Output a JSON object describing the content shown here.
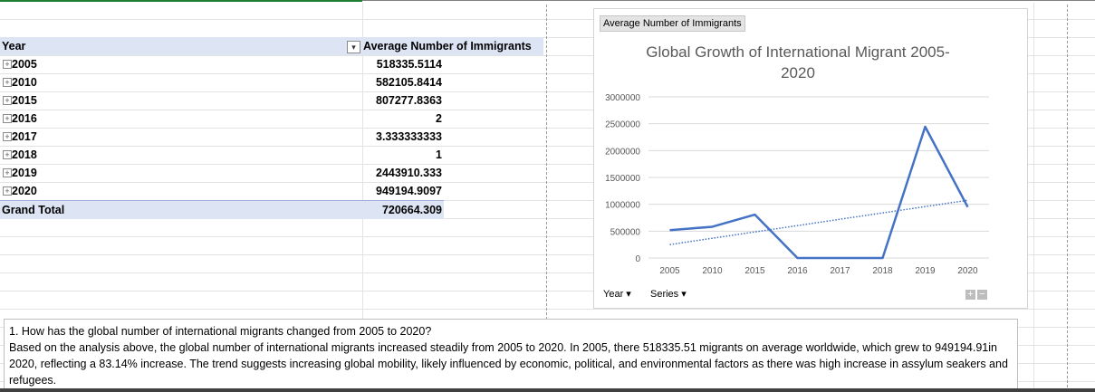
{
  "pivot": {
    "header_row_label": "Year",
    "header_value_label": "Average Number of Immigrants",
    "rows": [
      {
        "year": "2005",
        "value": "518335.5114"
      },
      {
        "year": "2010",
        "value": "582105.8414"
      },
      {
        "year": "2015",
        "value": "807277.8363"
      },
      {
        "year": "2016",
        "value": "2"
      },
      {
        "year": "2017",
        "value": "3.333333333"
      },
      {
        "year": "2018",
        "value": "1"
      },
      {
        "year": "2019",
        "value": "2443910.333"
      },
      {
        "year": "2020",
        "value": "949194.9097"
      }
    ],
    "grand_total_label": "Grand Total",
    "grand_total_value": "720664.309"
  },
  "chart_panel": {
    "value_field_button": "Average Number of Immigrants",
    "axis_field_button": "Year",
    "legend_field_button": "Series",
    "expand_button": "+",
    "collapse_button": "−"
  },
  "chart_data": {
    "type": "line",
    "title": "Global Growth of International Migrant 2005-2020",
    "title_line1": "Global Growth of International Migrant 2005-",
    "title_line2": "2020",
    "categories": [
      "2005",
      "2010",
      "2015",
      "2016",
      "2017",
      "2018",
      "2019",
      "2020"
    ],
    "series": [
      {
        "values": [
          518335.5114,
          582105.8414,
          807277.8363,
          2,
          3.333333333,
          1,
          2443910.333,
          949194.9097
        ],
        "color": "#4472c4"
      }
    ],
    "trendline": {
      "type": "linear",
      "style": "dotted",
      "color": "#4472c4"
    },
    "ylim": [
      0,
      3000000
    ],
    "yticks": [
      "3000000",
      "2500000",
      "2000000",
      "1500000",
      "1000000",
      "500000",
      "0"
    ],
    "ytick_values": [
      3000000,
      2500000,
      2000000,
      1500000,
      1000000,
      500000,
      0
    ],
    "grid": true,
    "legend": "none"
  },
  "textbox": {
    "question": "1. How has the global number of international migrants changed from 2005 to 2020?",
    "answer": "Based on the analysis above, the global number of international migrants increased steadily from 2005 to 2020. In 2005, there 518335.51 migrants on average worldwide, which grew to 949194.91in 2020, reflecting a 83.14% increase. The trend suggests increasing global mobility, likely influenced by economic, political, and environmental factors as there was high increase in assylum seakers and refugees."
  }
}
